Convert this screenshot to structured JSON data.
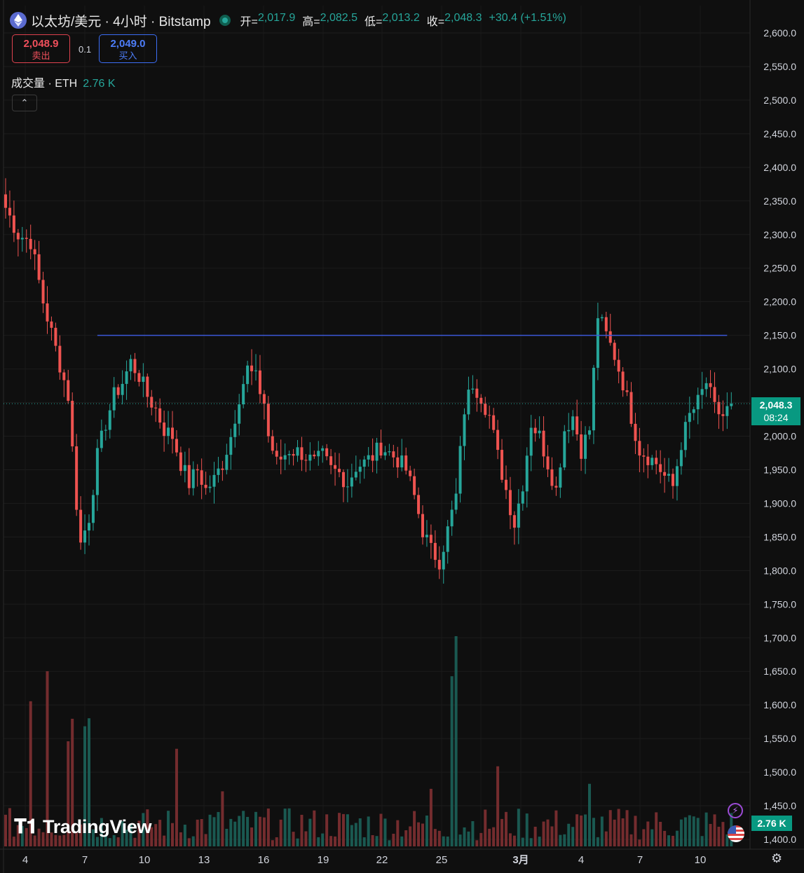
{
  "header": {
    "title": "以太坊/美元 · 4小时 · Bitstamp",
    "open_label": "开=",
    "open": "2,017.9",
    "high_label": "高=",
    "high": "2,082.5",
    "low_label": "低=",
    "low": "2,013.2",
    "close_label": "收=",
    "close": "2,048.3",
    "change": "+30.4 (+1.51%)"
  },
  "trade": {
    "sell_price": "2,048.9",
    "sell_label": "卖出",
    "spread": "0.1",
    "buy_price": "2,049.0",
    "buy_label": "买入"
  },
  "volume_legend": {
    "label": "成交量 · ETH",
    "value": "2.76 K"
  },
  "logo_text": "TradingView",
  "last_price_tag": {
    "price": "2,048.3",
    "countdown": "08:24"
  },
  "volume_tag": "2.76 K",
  "colors": {
    "up": "#26a69a",
    "down": "#ef5350",
    "hline": "#3b59d9",
    "background": "#0f0f0f"
  },
  "icons": [
    "ethereum-icon",
    "market-status-icon",
    "chevron-up-icon",
    "lightning-icon",
    "us-flag-icon",
    "settings-gear-icon"
  ],
  "chart_data": {
    "type": "candlestick",
    "interval": "4小时",
    "y_axis": {
      "ylim": [
        1375,
        2625
      ],
      "ticks": [
        "2,600.0",
        "2,550.0",
        "2,500.0",
        "2,450.0",
        "2,400.0",
        "2,350.0",
        "2,300.0",
        "2,250.0",
        "2,200.0",
        "2,150.0",
        "2,100.0",
        "2,050.0",
        "2,000.0",
        "1,950.0",
        "1,900.0",
        "1,850.0",
        "1,800.0",
        "1,750.0",
        "1,700.0",
        "1,650.0",
        "1,600.0",
        "1,550.0",
        "1,500.0",
        "1,450.0",
        "1,400.0"
      ]
    },
    "x_axis": {
      "ticks": [
        "4",
        "7",
        "10",
        "13",
        "16",
        "19",
        "22",
        "25",
        "",
        "3月",
        "4",
        "7",
        "10"
      ],
      "bold_tick": "3月"
    },
    "horizontal_line": {
      "price": 2150,
      "from_bar": 22,
      "to_bar": 173
    },
    "last_price": 2048.3,
    "close_waypoints": [
      [
        0,
        2340
      ],
      [
        3,
        2300
      ],
      [
        6,
        2290
      ],
      [
        9,
        2200
      ],
      [
        12,
        2130
      ],
      [
        15,
        2060
      ],
      [
        17,
        1900
      ],
      [
        18,
        1840
      ],
      [
        20,
        1880
      ],
      [
        22,
        1970
      ],
      [
        24,
        2020
      ],
      [
        26,
        2060
      ],
      [
        28,
        2080
      ],
      [
        30,
        2110
      ],
      [
        32,
        2090
      ],
      [
        34,
        2060
      ],
      [
        36,
        2040
      ],
      [
        38,
        2010
      ],
      [
        40,
        2000
      ],
      [
        42,
        1960
      ],
      [
        44,
        1930
      ],
      [
        46,
        1950
      ],
      [
        48,
        1920
      ],
      [
        50,
        1935
      ],
      [
        52,
        1960
      ],
      [
        54,
        2000
      ],
      [
        56,
        2060
      ],
      [
        58,
        2100
      ],
      [
        60,
        2085
      ],
      [
        62,
        2050
      ],
      [
        63,
        2000
      ],
      [
        65,
        1960
      ],
      [
        68,
        1980
      ],
      [
        71,
        1975
      ],
      [
        74,
        1960
      ],
      [
        76,
        1970
      ],
      [
        78,
        1950
      ],
      [
        80,
        1945
      ],
      [
        82,
        1930
      ],
      [
        84,
        1955
      ],
      [
        86,
        1960
      ],
      [
        88,
        1970
      ],
      [
        90,
        1985
      ],
      [
        92,
        1975
      ],
      [
        94,
        1965
      ],
      [
        96,
        1950
      ],
      [
        98,
        1910
      ],
      [
        100,
        1860
      ],
      [
        102,
        1830
      ],
      [
        104,
        1815
      ],
      [
        106,
        1860
      ],
      [
        108,
        1910
      ],
      [
        110,
        2040
      ],
      [
        112,
        2080
      ],
      [
        114,
        2060
      ],
      [
        116,
        2030
      ],
      [
        118,
        1970
      ],
      [
        120,
        1920
      ],
      [
        122,
        1870
      ],
      [
        124,
        1930
      ],
      [
        126,
        2020
      ],
      [
        128,
        2000
      ],
      [
        130,
        1960
      ],
      [
        132,
        1920
      ],
      [
        134,
        2010
      ],
      [
        136,
        2030
      ],
      [
        138,
        1980
      ],
      [
        140,
        2010
      ],
      [
        142,
        2180
      ],
      [
        144,
        2150
      ],
      [
        146,
        2120
      ],
      [
        148,
        2080
      ],
      [
        150,
        2030
      ],
      [
        152,
        1980
      ],
      [
        154,
        1970
      ],
      [
        156,
        1960
      ],
      [
        158,
        1940
      ],
      [
        160,
        1925
      ],
      [
        162,
        1990
      ],
      [
        164,
        2030
      ],
      [
        166,
        2050
      ],
      [
        168,
        2080
      ],
      [
        170,
        2040
      ],
      [
        172,
        2030
      ],
      [
        174,
        2048
      ]
    ],
    "volume_ylim": [
      0,
      4200
    ],
    "volume_spikes": [
      [
        6,
        2900
      ],
      [
        10,
        3500
      ],
      [
        15,
        2100
      ],
      [
        16,
        2550
      ],
      [
        19,
        2400
      ],
      [
        20,
        2560
      ],
      [
        41,
        1950
      ],
      [
        52,
        1100
      ],
      [
        102,
        1150
      ],
      [
        107,
        3400
      ],
      [
        108,
        4200
      ],
      [
        118,
        1600
      ],
      [
        140,
        1250
      ]
    ]
  }
}
